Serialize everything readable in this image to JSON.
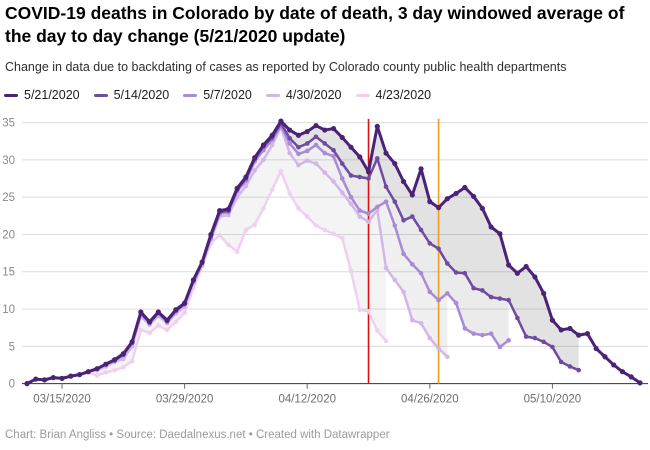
{
  "header": {
    "title": "COVID-19 deaths in Colorado by date of death, 3 day windowed average of the day to day change (5/21/2020 update)",
    "subtitle": "Change in data due to backdating of cases as reported by Colorado county public health departments"
  },
  "footer": {
    "text": "Chart: Brian Angliss • Source: Daedalnexus.net • Created with Datawrapper"
  },
  "chart_data": {
    "type": "line",
    "title": "COVID-19 deaths in Colorado by date of death, 3 day windowed average of the day to day change (5/21/2020 update)",
    "xlabel": "",
    "ylabel": "",
    "grid": true,
    "legend_position": "top",
    "ylim": [
      0,
      36.5
    ],
    "y_ticks": [
      0,
      5,
      10,
      15,
      20,
      25,
      30,
      35
    ],
    "x_start_date": "03/11/2020",
    "x_ticks": [
      {
        "label": "03/15/2020",
        "day": 4
      },
      {
        "label": "03/29/2020",
        "day": 18
      },
      {
        "label": "04/12/2020",
        "day": 32
      },
      {
        "label": "04/26/2020",
        "day": 46
      },
      {
        "label": "05/10/2020",
        "day": 60
      }
    ],
    "vlines": [
      {
        "day": 39,
        "color": "#dd1111"
      },
      {
        "day": 47,
        "color": "#ee9d24"
      }
    ],
    "series": [
      {
        "name": "5/21/2020",
        "color": "#4a2377",
        "values": [
          0,
          0.6,
          0.5,
          0.8,
          0.7,
          1,
          1.2,
          1.6,
          2,
          2.6,
          3.2,
          4,
          5.6,
          9.6,
          8.3,
          9.6,
          8.5,
          9.9,
          10.8,
          13.9,
          16.3,
          20,
          23.2,
          23.4,
          26.2,
          27.7,
          30.3,
          32,
          33.3,
          35.2,
          34,
          33.3,
          33.8,
          34.6,
          34,
          34.2,
          33,
          31.7,
          30.4,
          28.4,
          34.5,
          30.9,
          29.5,
          27.1,
          25.3,
          28.8,
          24.4,
          23.6,
          24.8,
          25.5,
          26.3,
          25.1,
          23.5,
          21,
          20.1,
          15.9,
          14.8,
          15.7,
          14.3,
          12.1,
          8.5,
          7.2,
          7.4,
          6.5,
          6.7,
          4.7,
          3.6,
          2.5,
          1.6,
          0.9,
          0.1
        ]
      },
      {
        "name": "5/14/2020",
        "color": "#6f4ba1",
        "values": [
          0,
          0.6,
          0.5,
          0.8,
          0.7,
          1,
          1.2,
          1.6,
          2,
          2.6,
          3.1,
          3.9,
          5.5,
          9.5,
          8.2,
          9.5,
          8.4,
          9.8,
          10.7,
          13.8,
          16.2,
          19.8,
          23,
          23.2,
          26,
          27.5,
          30.1,
          31.8,
          33,
          34.9,
          32.9,
          31.7,
          32.2,
          33.1,
          32.2,
          31.3,
          29.5,
          27.9,
          27.7,
          27.5,
          30.2,
          26.4,
          24.4,
          21.9,
          22.4,
          20.6,
          18.8,
          18.1,
          16.1,
          14.9,
          14.8,
          12.8,
          12.5,
          11.6,
          11.4,
          11.2,
          8.8,
          6.3,
          6.1,
          5.6,
          4.9,
          2.9,
          2.3,
          1.8
        ]
      },
      {
        "name": "5/7/2020",
        "color": "#a78bd7",
        "values": [
          0,
          0.6,
          0.5,
          0.8,
          0.7,
          1,
          1.2,
          1.6,
          2,
          2.6,
          3.1,
          3.8,
          5.4,
          9.3,
          8.1,
          9.4,
          8.3,
          9.7,
          10.6,
          13.7,
          16.1,
          19.5,
          22.8,
          23,
          25.8,
          27.2,
          29.8,
          31.3,
          32.7,
          34.6,
          32.2,
          30.8,
          31.2,
          32,
          30.9,
          30.5,
          27.5,
          25,
          23.2,
          22.8,
          23.7,
          24.4,
          21.2,
          17.4,
          16,
          14.8,
          12.3,
          11.2,
          12.1,
          10.8,
          7.4,
          6.7,
          6.5,
          6.7,
          4.9,
          5.8
        ]
      },
      {
        "name": "4/30/2020",
        "color": "#d2b6ea",
        "values": [
          0,
          0.6,
          0.5,
          0.8,
          0.7,
          1,
          1.2,
          1.6,
          1.8,
          2.3,
          2.9,
          3.3,
          5,
          9,
          7.9,
          9.1,
          8.1,
          9.4,
          10.3,
          13.4,
          15.8,
          19.4,
          22.4,
          22.6,
          25,
          26.5,
          28.6,
          30,
          32,
          34.4,
          30.9,
          29.3,
          29.9,
          29.5,
          28.3,
          27.1,
          25.6,
          24.1,
          22.4,
          21.7,
          23.3,
          15.5,
          13.9,
          12.3,
          8.5,
          8.1,
          6.1,
          4.7,
          3.6
        ]
      },
      {
        "name": "4/23/2020",
        "color": "#f0d0f2",
        "values": [
          0,
          0.6,
          0.5,
          0.8,
          0.7,
          1,
          1.2,
          1.5,
          1.1,
          1.5,
          1.8,
          2.2,
          3,
          7.2,
          6.8,
          7.8,
          7.2,
          8.3,
          9.5,
          12.8,
          15.8,
          18.8,
          19.9,
          18.6,
          17.7,
          20.6,
          21.3,
          23.5,
          26,
          28.5,
          25.5,
          23.5,
          22.4,
          21.2,
          20.6,
          20.1,
          19.5,
          15.1,
          9.9,
          9.7,
          7.1,
          5.7
        ]
      }
    ]
  }
}
